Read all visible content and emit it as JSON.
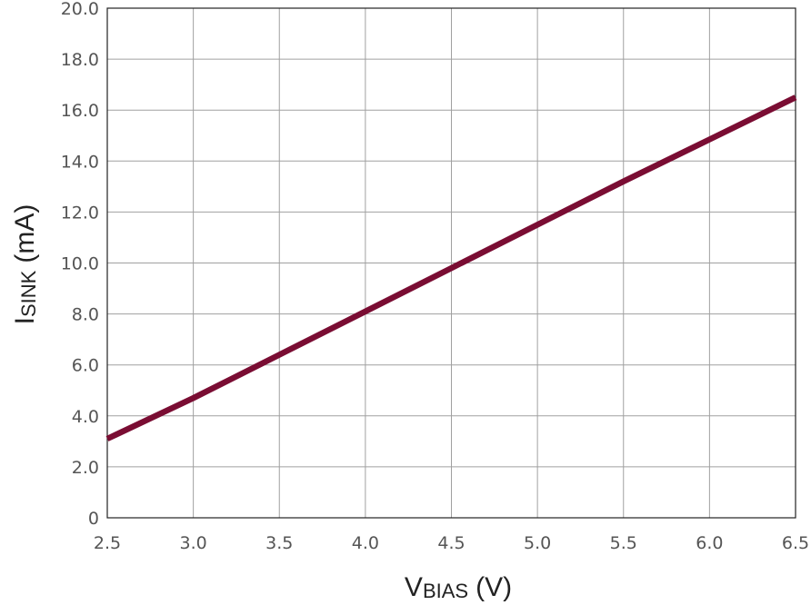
{
  "chart_data": {
    "type": "line",
    "title": "",
    "xlabel": {
      "main": "V",
      "sub": "BIAS",
      "unit": "(V)"
    },
    "ylabel": {
      "main": "I",
      "sub": "SINK",
      "unit": "(mA)"
    },
    "xlim": [
      2.5,
      6.5
    ],
    "ylim": [
      0,
      20
    ],
    "xticks": [
      2.5,
      3.0,
      3.5,
      4.0,
      4.5,
      5.0,
      5.5,
      6.0,
      6.5
    ],
    "xtick_labels": [
      "2.5",
      "3.0",
      "3.5",
      "4.0",
      "4.5",
      "5.0",
      "5.5",
      "6.0",
      "6.5"
    ],
    "yticks": [
      0,
      2,
      4,
      6,
      8,
      10,
      12,
      14,
      16,
      18,
      20
    ],
    "ytick_labels": [
      "0",
      "2.0",
      "4.0",
      "6.0",
      "8.0",
      "10.0",
      "12.0",
      "14.0",
      "16.0",
      "18.0",
      "20.0"
    ],
    "grid": true,
    "series": [
      {
        "color": "#7a0d33",
        "x": [
          2.5,
          3.0,
          3.5,
          4.0,
          4.5,
          5.0,
          5.5,
          6.0,
          6.5
        ],
        "y": [
          3.1,
          4.7,
          6.4,
          8.1,
          9.8,
          11.5,
          13.2,
          14.85,
          16.5
        ]
      }
    ]
  }
}
